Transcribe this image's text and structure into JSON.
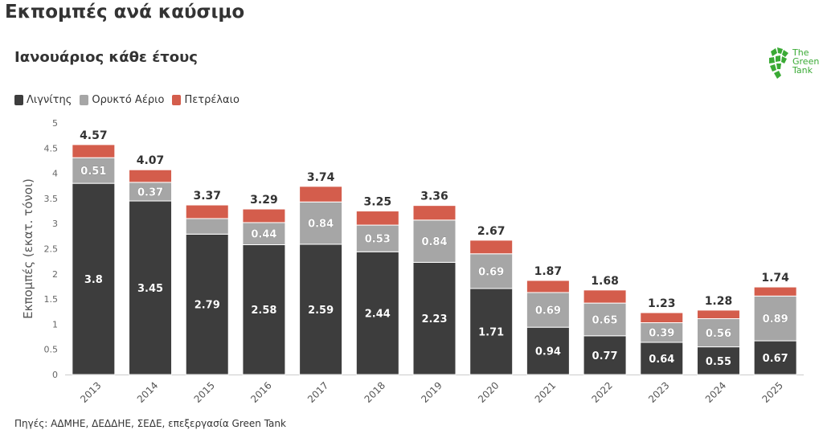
{
  "header": {
    "title": "Εκπομπές ανά καύσιμο",
    "subtitle": "Ιανουάριος κάθε έτους"
  },
  "logo": {
    "lines": [
      "The",
      "Green",
      "Tank"
    ],
    "color": "#3aaa35",
    "icon": "globe-leaf-icon"
  },
  "footer": {
    "source": "Πηγές: ΑΔΜΗΕ, ΔΕΔΔΗΕ, ΣΕΔΕ, επεξεργασία Green Tank"
  },
  "chart_data": {
    "type": "bar",
    "stacked": true,
    "categories": [
      "2013",
      "2014",
      "2015",
      "2016",
      "2017",
      "2018",
      "2019",
      "2020",
      "2021",
      "2022",
      "2023",
      "2024",
      "2025"
    ],
    "series": [
      {
        "name": "Λιγνίτης",
        "color": "#3d3d3d",
        "values": [
          3.8,
          3.45,
          2.79,
          2.58,
          2.59,
          2.44,
          2.23,
          1.71,
          0.94,
          0.77,
          0.64,
          0.55,
          0.67
        ],
        "labels": [
          "3.8",
          "3.45",
          "2.79",
          "2.58",
          "2.59",
          "2.44",
          "2.23",
          "1.71",
          "0.94",
          "0.77",
          "0.64",
          "0.55",
          "0.67"
        ]
      },
      {
        "name": "Ορυκτό Αέριο",
        "color": "#a6a6a6",
        "values": [
          0.51,
          0.37,
          0.31,
          0.44,
          0.84,
          0.53,
          0.84,
          0.69,
          0.69,
          0.65,
          0.39,
          0.56,
          0.89
        ],
        "labels": [
          "0.51",
          "0.37",
          "",
          "0.44",
          "0.84",
          "0.53",
          "0.84",
          "0.69",
          "0.69",
          "0.65",
          "0.39",
          "0.56",
          "0.89"
        ]
      },
      {
        "name": "Πετρέλαιο",
        "color": "#d45d4c",
        "values": [
          0.26,
          0.25,
          0.27,
          0.27,
          0.31,
          0.28,
          0.29,
          0.27,
          0.24,
          0.26,
          0.2,
          0.17,
          0.18
        ],
        "labels": [
          "",
          "",
          "",
          "",
          "",
          "",
          "",
          "",
          "",
          "",
          "",
          "",
          ""
        ]
      }
    ],
    "totals": [
      "4.57",
      "4.07",
      "3.37",
      "3.29",
      "3.74",
      "3.25",
      "3.36",
      "2.67",
      "1.87",
      "1.68",
      "1.23",
      "1.28",
      "1.74"
    ],
    "ylabel": "Εκπομπές (εκατ. τόνοι)",
    "xlabel": "",
    "ylim": [
      0,
      5
    ],
    "yticks": [
      "0",
      "0.5",
      "1",
      "1.5",
      "2",
      "2.5",
      "3",
      "3.5",
      "4",
      "4.5",
      "5"
    ],
    "grid": false,
    "legend_position": "top-left"
  }
}
